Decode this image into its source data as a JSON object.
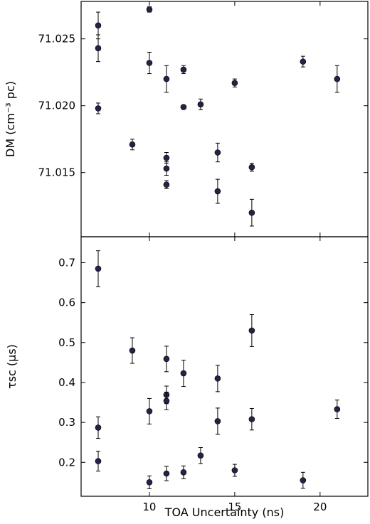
{
  "chart_data": [
    {
      "type": "scatter",
      "ylabel": "DM (cm⁻³ pc)",
      "xlim": [
        6,
        22.8
      ],
      "ylim": [
        71.0102,
        71.0278
      ],
      "yticks": [
        71.015,
        71.02,
        71.025
      ],
      "ytick_labels": [
        "71.015",
        "71.020",
        "71.025"
      ],
      "marker_color": "#2b1f47",
      "points": [
        {
          "x": 7,
          "y": 71.026,
          "err": 0.001
        },
        {
          "x": 7,
          "y": 71.0243,
          "err": 0.001
        },
        {
          "x": 7,
          "y": 71.0198,
          "err": 0.0004
        },
        {
          "x": 9,
          "y": 71.0171,
          "err": 0.0004
        },
        {
          "x": 10,
          "y": 71.0272,
          "err": 0.0002
        },
        {
          "x": 10,
          "y": 71.0232,
          "err": 0.0008
        },
        {
          "x": 11,
          "y": 71.022,
          "err": 0.001
        },
        {
          "x": 11,
          "y": 71.0161,
          "err": 0.0004
        },
        {
          "x": 11,
          "y": 71.0153,
          "err": 0.0005
        },
        {
          "x": 11,
          "y": 71.0141,
          "err": 0.0003
        },
        {
          "x": 12,
          "y": 71.0227,
          "err": 0.0003
        },
        {
          "x": 12,
          "y": 71.0199,
          "err": 0.0001
        },
        {
          "x": 13,
          "y": 71.0201,
          "err": 0.0004
        },
        {
          "x": 14,
          "y": 71.0165,
          "err": 0.0007
        },
        {
          "x": 14,
          "y": 71.0136,
          "err": 0.0009
        },
        {
          "x": 15,
          "y": 71.0217,
          "err": 0.0003
        },
        {
          "x": 16,
          "y": 71.0154,
          "err": 0.0003
        },
        {
          "x": 16,
          "y": 71.012,
          "err": 0.001
        },
        {
          "x": 19,
          "y": 71.0233,
          "err": 0.0004
        },
        {
          "x": 21,
          "y": 71.022,
          "err": 0.001
        }
      ]
    },
    {
      "type": "scatter",
      "xlabel": "TOA Uncertainty (ns)",
      "ylabel": "τsc (μs)",
      "xlim": [
        6,
        22.8
      ],
      "ylim": [
        0.115,
        0.765
      ],
      "xticks": [
        10,
        15,
        20
      ],
      "xtick_labels": [
        "10",
        "15",
        "20"
      ],
      "yticks": [
        0.2,
        0.3,
        0.4,
        0.5,
        0.6,
        0.7
      ],
      "ytick_labels": [
        "0.2",
        "0.3",
        "0.4",
        "0.5",
        "0.6",
        "0.7"
      ],
      "marker_color": "#2b1f47",
      "points": [
        {
          "x": 7,
          "y": 0.685,
          "err": 0.045
        },
        {
          "x": 7,
          "y": 0.287,
          "err": 0.027
        },
        {
          "x": 7,
          "y": 0.203,
          "err": 0.025
        },
        {
          "x": 9,
          "y": 0.48,
          "err": 0.032
        },
        {
          "x": 10,
          "y": 0.328,
          "err": 0.032
        },
        {
          "x": 10,
          "y": 0.15,
          "err": 0.016
        },
        {
          "x": 11,
          "y": 0.459,
          "err": 0.032
        },
        {
          "x": 11,
          "y": 0.369,
          "err": 0.022
        },
        {
          "x": 11,
          "y": 0.354,
          "err": 0.022
        },
        {
          "x": 11,
          "y": 0.172,
          "err": 0.018
        },
        {
          "x": 12,
          "y": 0.423,
          "err": 0.033
        },
        {
          "x": 12,
          "y": 0.175,
          "err": 0.016
        },
        {
          "x": 13,
          "y": 0.217,
          "err": 0.02
        },
        {
          "x": 14,
          "y": 0.41,
          "err": 0.033
        },
        {
          "x": 14,
          "y": 0.303,
          "err": 0.033
        },
        {
          "x": 15,
          "y": 0.18,
          "err": 0.015
        },
        {
          "x": 16,
          "y": 0.53,
          "err": 0.04
        },
        {
          "x": 16,
          "y": 0.308,
          "err": 0.027
        },
        {
          "x": 19,
          "y": 0.155,
          "err": 0.02
        },
        {
          "x": 21,
          "y": 0.333,
          "err": 0.023
        }
      ]
    }
  ]
}
